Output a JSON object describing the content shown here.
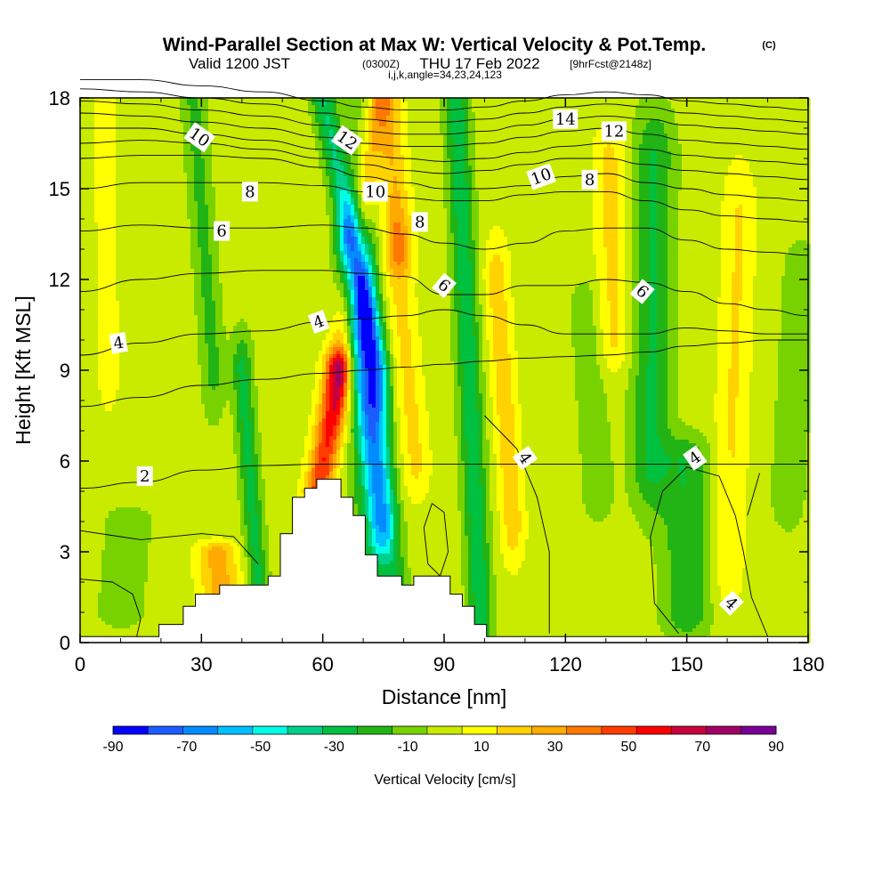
{
  "title": {
    "main": "Wind-Parallel Section at Max W: Vertical Velocity & Pot.Temp.",
    "copyright": "(C)",
    "valid_prefix": "Valid 1200 JST",
    "valid_utc": "(0300Z)",
    "valid_date": "THU 17 Feb 2022",
    "forecast": "[9hrFcst@2148z]",
    "indices": "i,j,k,angle=34,23,24,123"
  },
  "chart_data": {
    "type": "heatmap",
    "xlabel": "Distance [nm]",
    "ylabel": "Height [Kft MSL]",
    "xlim": [
      0,
      180
    ],
    "ylim": [
      0,
      18
    ],
    "x_ticks": [
      0,
      30,
      60,
      90,
      120,
      150,
      180
    ],
    "y_ticks": [
      0,
      3,
      6,
      9,
      12,
      15,
      18
    ],
    "colorbar": {
      "label": "Vertical Velocity [cm/s]",
      "tick_labels": [
        "-90",
        "-70",
        "-50",
        "-30",
        "-10",
        "10",
        "30",
        "50",
        "70",
        "90"
      ],
      "levels": [
        -90,
        -80,
        -70,
        -60,
        -50,
        -40,
        -30,
        -20,
        -10,
        0,
        10,
        20,
        30,
        40,
        50,
        60,
        70,
        80,
        90
      ],
      "colors": [
        "#0000ff",
        "#1c5cff",
        "#008cff",
        "#00c0ff",
        "#00ffe6",
        "#00d08c",
        "#00c040",
        "#22b414",
        "#78d200",
        "#c8eb00",
        "#ffff00",
        "#ffd200",
        "#ffaa00",
        "#ff7800",
        "#ff3c00",
        "#ff0000",
        "#c8003c",
        "#a00064",
        "#780096"
      ]
    },
    "vertical_velocity_field": {
      "base": 5,
      "features": [
        {
          "x0": 59,
          "y0": 5,
          "x1": 64,
          "y1": 9,
          "w": 3.5,
          "amp": 55
        },
        {
          "x0": 64,
          "y0": 9,
          "x1": 74,
          "y1": 18,
          "w": 3,
          "amp": 28
        },
        {
          "x0": 74,
          "y0": 4,
          "x1": 67,
          "y1": 13,
          "w": 3.5,
          "amp": -55
        },
        {
          "x0": 74,
          "y0": 9,
          "x1": 60,
          "y1": 18,
          "w": 3,
          "amp": -35
        },
        {
          "x0": 69,
          "y0": 1,
          "x1": 70,
          "y1": 18,
          "w": 4.5,
          "amp": -10
        },
        {
          "x0": 78,
          "y0": 2,
          "x1": 71,
          "y1": 12,
          "w": 3,
          "amp": -22
        },
        {
          "x0": 83,
          "y0": 6,
          "x1": 78,
          "y1": 13,
          "w": 3.5,
          "amp": 18
        },
        {
          "x0": 79,
          "y0": 13,
          "x1": 76,
          "y1": 18,
          "w": 3.5,
          "amp": 25
        },
        {
          "x0": 99,
          "y0": 1,
          "x1": 93,
          "y1": 18,
          "w": 3,
          "amp": -32
        },
        {
          "x0": 107,
          "y0": 4,
          "x1": 103,
          "y1": 12,
          "w": 3,
          "amp": 22
        },
        {
          "x0": 44,
          "y0": 2,
          "x1": 40,
          "y1": 9,
          "w": 2.5,
          "amp": -28
        },
        {
          "x0": 33,
          "y0": 9,
          "x1": 28,
          "y1": 18,
          "w": 3,
          "amp": -18
        },
        {
          "x0": 7,
          "y0": 9,
          "x1": 6,
          "y1": 18,
          "w": 3,
          "amp": 10
        },
        {
          "x0": 150,
          "y0": 1,
          "x1": 150,
          "y1": 6,
          "w": 6,
          "amp": -24
        },
        {
          "x0": 141,
          "y0": 6,
          "x1": 142,
          "y1": 16,
          "w": 5,
          "amp": -26
        },
        {
          "x0": 160,
          "y0": 3,
          "x1": 163,
          "y1": 14,
          "w": 4,
          "amp": 16
        },
        {
          "x0": 128,
          "y0": 5,
          "x1": 125,
          "y1": 11,
          "w": 4,
          "amp": -12
        },
        {
          "x0": 132,
          "y0": 10,
          "x1": 131,
          "y1": 16,
          "w": 4,
          "amp": 18
        },
        {
          "x0": 175,
          "y0": 5,
          "x1": 178,
          "y1": 12,
          "w": 4,
          "amp": -15
        },
        {
          "x0": 35,
          "y0": 1,
          "x1": 34,
          "y1": 3,
          "w": 5,
          "amp": 30
        },
        {
          "x0": 10,
          "y0": 1,
          "x1": 12,
          "y1": 4,
          "w": 6,
          "amp": -12
        }
      ]
    },
    "terrain_kft": [
      0.2,
      0.2,
      0.2,
      0.2,
      0.2,
      0.2,
      0.2,
      0.6,
      0.6,
      1.2,
      1.6,
      1.6,
      1.9,
      1.9,
      1.9,
      1.9,
      2.2,
      3.6,
      4.8,
      5.1,
      5.4,
      5.4,
      4.8,
      4.2,
      2.9,
      2.2,
      2.2,
      1.9,
      2.2,
      2.2,
      2.2,
      1.6,
      1.2,
      0.6,
      0.2,
      0.2,
      0.2,
      0.2,
      0.2,
      0.2,
      0.2,
      0.2,
      0.2,
      0.2,
      0.2,
      0.2,
      0.2,
      0.2,
      0.2,
      0.2,
      0.2,
      0.2,
      0.2,
      0.2,
      0.2,
      0.2,
      0.2,
      0.2,
      0.2,
      0.2,
      0.2
    ],
    "theta_contours": {
      "x": [
        0,
        15,
        30,
        45,
        60,
        70,
        80,
        90,
        100,
        110,
        120,
        130,
        140,
        150,
        160,
        170,
        180
      ],
      "lines": [
        {
          "level": 2,
          "y": [
            5.1,
            5.3,
            5.7,
            5.85,
            5.9,
            5.9,
            5.9,
            5.9,
            5.9,
            5.9,
            5.9,
            5.9,
            5.9,
            5.9,
            5.9,
            5.9,
            5.9
          ]
        },
        {
          "level": 3,
          "y": [
            7.8,
            8.1,
            8.5,
            8.7,
            8.9,
            9.0,
            9.1,
            9.2,
            9.3,
            9.4,
            9.45,
            9.5,
            9.6,
            9.8,
            9.9,
            10.0,
            10.0
          ]
        },
        {
          "level": 4,
          "y": [
            9.5,
            9.9,
            10.2,
            10.3,
            10.6,
            10.7,
            10.8,
            11.0,
            10.8,
            10.5,
            10.2,
            10.2,
            10.2,
            10.4,
            10.3,
            10.2,
            10.2
          ]
        },
        {
          "level": 5,
          "y": [
            11.6,
            12.0,
            12.2,
            12.3,
            12.3,
            12.2,
            12.1,
            11.5,
            11.5,
            11.8,
            11.8,
            12.0,
            11.9,
            11.6,
            11.2,
            11.0,
            10.8
          ]
        },
        {
          "level": 6,
          "y": [
            13.6,
            13.8,
            13.7,
            13.7,
            13.8,
            13.7,
            13.5,
            13.2,
            13.0,
            13.2,
            13.6,
            13.7,
            13.7,
            13.3,
            13.0,
            12.9,
            12.8
          ]
        },
        {
          "level": 7,
          "y": [
            15.0,
            15.2,
            15.2,
            15.2,
            15.1,
            14.9,
            14.7,
            14.6,
            14.6,
            14.8,
            14.9,
            14.9,
            14.6,
            14.3,
            14.1,
            14.0,
            13.9
          ]
        },
        {
          "level": 8,
          "y": [
            16.0,
            16.1,
            16.1,
            16.0,
            15.7,
            15.4,
            15.2,
            15.0,
            15.0,
            15.1,
            15.4,
            15.5,
            15.2,
            15.0,
            14.8,
            14.7,
            14.6
          ]
        },
        {
          "level": 9,
          "y": [
            16.5,
            16.6,
            16.5,
            16.3,
            16.0,
            15.8,
            15.6,
            15.5,
            15.6,
            15.8,
            16.0,
            16.0,
            15.8,
            15.6,
            15.5,
            15.4,
            15.3
          ]
        },
        {
          "level": 10,
          "y": [
            17.0,
            17.0,
            16.8,
            16.6,
            16.3,
            16.1,
            16.0,
            15.9,
            16.0,
            16.2,
            16.4,
            16.5,
            16.3,
            16.1,
            16.0,
            15.9,
            15.8
          ]
        },
        {
          "level": 11,
          "y": [
            17.5,
            17.4,
            17.2,
            17.0,
            16.7,
            16.5,
            16.4,
            16.4,
            16.5,
            16.7,
            16.9,
            17.0,
            16.8,
            16.6,
            16.5,
            16.4,
            16.3
          ]
        },
        {
          "level": 12,
          "y": [
            17.9,
            17.8,
            17.6,
            17.4,
            17.1,
            16.9,
            16.8,
            16.8,
            16.9,
            17.1,
            17.3,
            17.4,
            17.3,
            17.1,
            17.0,
            16.9,
            16.8
          ]
        },
        {
          "level": 13,
          "y": [
            18.3,
            18.2,
            18.0,
            17.8,
            17.5,
            17.3,
            17.2,
            17.2,
            17.3,
            17.5,
            17.7,
            17.8,
            17.7,
            17.5,
            17.4,
            17.3,
            17.2
          ]
        },
        {
          "level": 14,
          "y": [
            18.6,
            18.6,
            18.4,
            18.2,
            17.9,
            17.7,
            17.6,
            17.6,
            17.7,
            17.9,
            18.1,
            18.2,
            18.1,
            17.9,
            17.8,
            17.7,
            17.6
          ]
        }
      ],
      "labels": [
        {
          "text": "2",
          "x": 16,
          "y": 5.5,
          "rot": 0
        },
        {
          "text": "4",
          "x": 9.5,
          "y": 9.9,
          "rot": -10
        },
        {
          "text": "4",
          "x": 59,
          "y": 10.6,
          "rot": -20
        },
        {
          "text": "4",
          "x": 110,
          "y": 6.1,
          "rot": 55
        },
        {
          "text": "4",
          "x": 152,
          "y": 6.1,
          "rot": -35
        },
        {
          "text": "4",
          "x": 161,
          "y": 1.3,
          "rot": 45
        },
        {
          "text": "6",
          "x": 35,
          "y": 13.6,
          "rot": 0
        },
        {
          "text": "6",
          "x": 90,
          "y": 11.8,
          "rot": 40
        },
        {
          "text": "6",
          "x": 139,
          "y": 11.6,
          "rot": 40
        },
        {
          "text": "8",
          "x": 42,
          "y": 14.9,
          "rot": 0
        },
        {
          "text": "8",
          "x": 84,
          "y": 13.9,
          "rot": 0
        },
        {
          "text": "8",
          "x": 126,
          "y": 15.3,
          "rot": 0
        },
        {
          "text": "10",
          "x": 29.5,
          "y": 16.7,
          "rot": 35
        },
        {
          "text": "10",
          "x": 73,
          "y": 14.9,
          "rot": 0
        },
        {
          "text": "10",
          "x": 114,
          "y": 15.4,
          "rot": -20
        },
        {
          "text": "12",
          "x": 66,
          "y": 16.6,
          "rot": 35
        },
        {
          "text": "12",
          "x": 132,
          "y": 16.9,
          "rot": 0
        },
        {
          "text": "14",
          "x": 120,
          "y": 17.3,
          "rot": 0
        }
      ]
    }
  }
}
